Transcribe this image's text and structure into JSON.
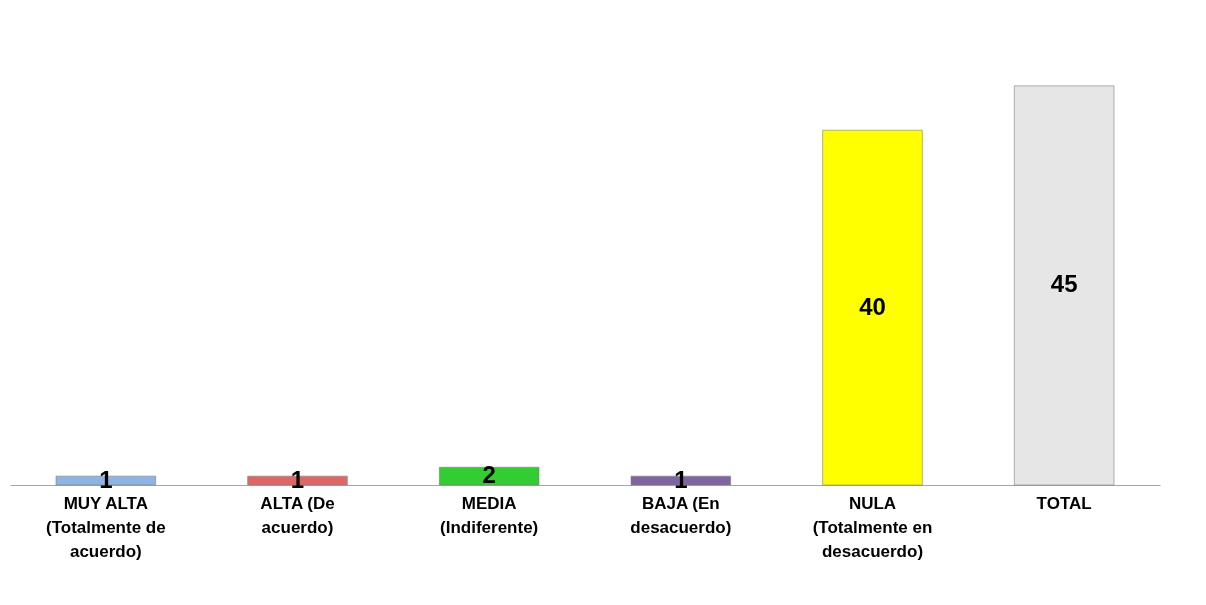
{
  "chart_data": {
    "type": "bar",
    "categories": [
      "MUY ALTA (Totalmente de acuerdo)",
      "ALTA (De acuerdo)",
      "MEDIA (Indiferente)",
      "BAJA (En desacuerdo)",
      "NULA (Totalmente en desacuerdo)",
      "TOTAL"
    ],
    "values": [
      1,
      1,
      2,
      1,
      40,
      45
    ],
    "colors": [
      "#8db4e2",
      "#e06666",
      "#33cc33",
      "#8064a2",
      "#ffff00",
      "#e6e6e6"
    ],
    "data_labels": true
  }
}
